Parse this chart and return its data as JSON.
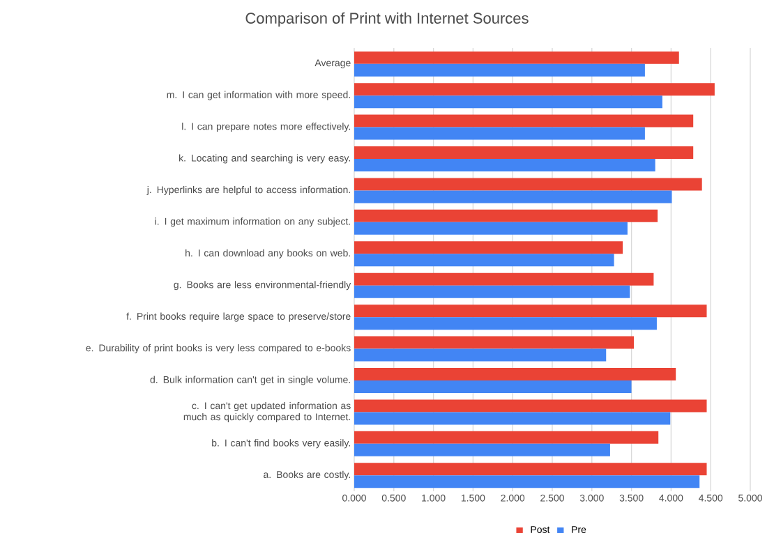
{
  "chart_data": {
    "type": "bar",
    "orientation": "horizontal",
    "title": "Comparison of Print with Internet Sources",
    "categories": [
      "Average",
      "m. I can get information with more speed.",
      "l. I can prepare notes more effectively.",
      "k. Locating and searching is very easy.",
      "j. Hyperlinks are helpful to access information.",
      "i. I get maximum information on any subject.",
      "h. I can download any books on web.",
      "g. Books are less environmental-friendly",
      "f. Print books require large space to preserve/store",
      "e. Durability of print books is very less compared to e-books",
      "d. Bulk information can't get in single volume.",
      "c. I can't get updated information as much as quickly compared to Internet.",
      "b. I can't find books very easily.",
      "a. Books are costly."
    ],
    "series": [
      {
        "name": "Post",
        "color": "#ea4335",
        "values": [
          4.1,
          4.55,
          4.28,
          4.28,
          4.39,
          3.83,
          3.39,
          3.78,
          4.45,
          3.53,
          4.06,
          4.45,
          3.84,
          4.45
        ]
      },
      {
        "name": "Pre",
        "color": "#4285f4",
        "values": [
          3.67,
          3.89,
          3.67,
          3.8,
          4.01,
          3.45,
          3.28,
          3.48,
          3.82,
          3.18,
          3.5,
          3.99,
          3.23,
          4.36
        ]
      }
    ],
    "xlim": [
      0,
      5
    ],
    "xticks": [
      {
        "value": 0,
        "label": "0.000"
      },
      {
        "value": 0.5,
        "label": "0.500"
      },
      {
        "value": 1,
        "label": "1.000"
      },
      {
        "value": 1.5,
        "label": "1.500"
      },
      {
        "value": 2,
        "label": "2.000"
      },
      {
        "value": 2.5,
        "label": "2.500"
      },
      {
        "value": 3,
        "label": "3.000"
      },
      {
        "value": 3.5,
        "label": "3.500"
      },
      {
        "value": 4,
        "label": "4.000"
      },
      {
        "value": 4.5,
        "label": "4.500"
      },
      {
        "value": 5,
        "label": "5.000"
      }
    ],
    "grid": "x",
    "legend": "bottom"
  }
}
